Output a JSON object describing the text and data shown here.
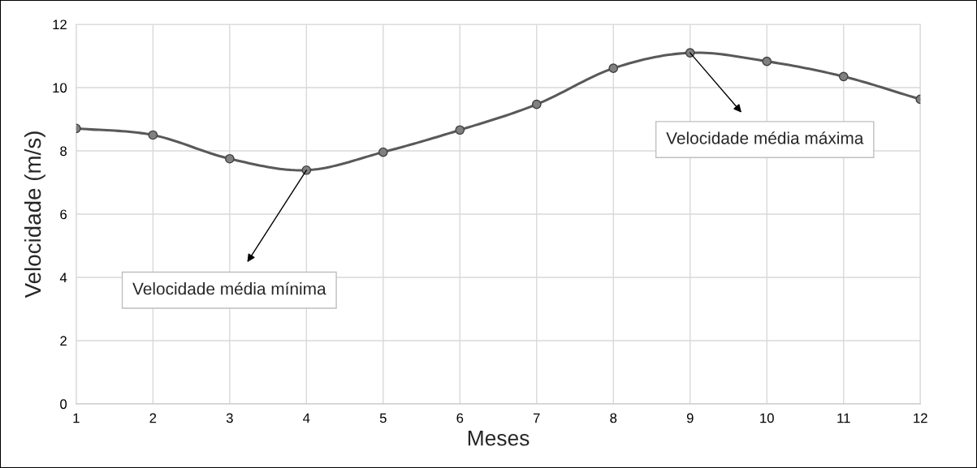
{
  "chart_data": {
    "type": "line",
    "xlabel": "Meses",
    "ylabel": "Velocidade (m/s)",
    "x": [
      1,
      2,
      3,
      4,
      5,
      6,
      7,
      8,
      9,
      10,
      11,
      12
    ],
    "series": [
      {
        "color": "#595959",
        "values": [
          8.71,
          8.5,
          7.75,
          7.39,
          7.96,
          8.66,
          9.47,
          10.61,
          11.1,
          10.83,
          10.35,
          9.63
        ]
      }
    ],
    "xlim": [
      1,
      12
    ],
    "xticks": [
      1,
      2,
      3,
      4,
      5,
      6,
      7,
      8,
      9,
      10,
      11,
      12
    ],
    "ylim": [
      0,
      12
    ],
    "yticks": [
      0,
      2,
      4,
      6,
      8,
      10,
      12
    ],
    "grid": true,
    "marker": "circle",
    "line_style": "solid",
    "annotations": [
      {
        "text": "Velocidade média mínima",
        "x": 4,
        "y": 7.39
      },
      {
        "text": "Velocidade média máxima",
        "x": 9,
        "y": 11.1
      }
    ]
  }
}
